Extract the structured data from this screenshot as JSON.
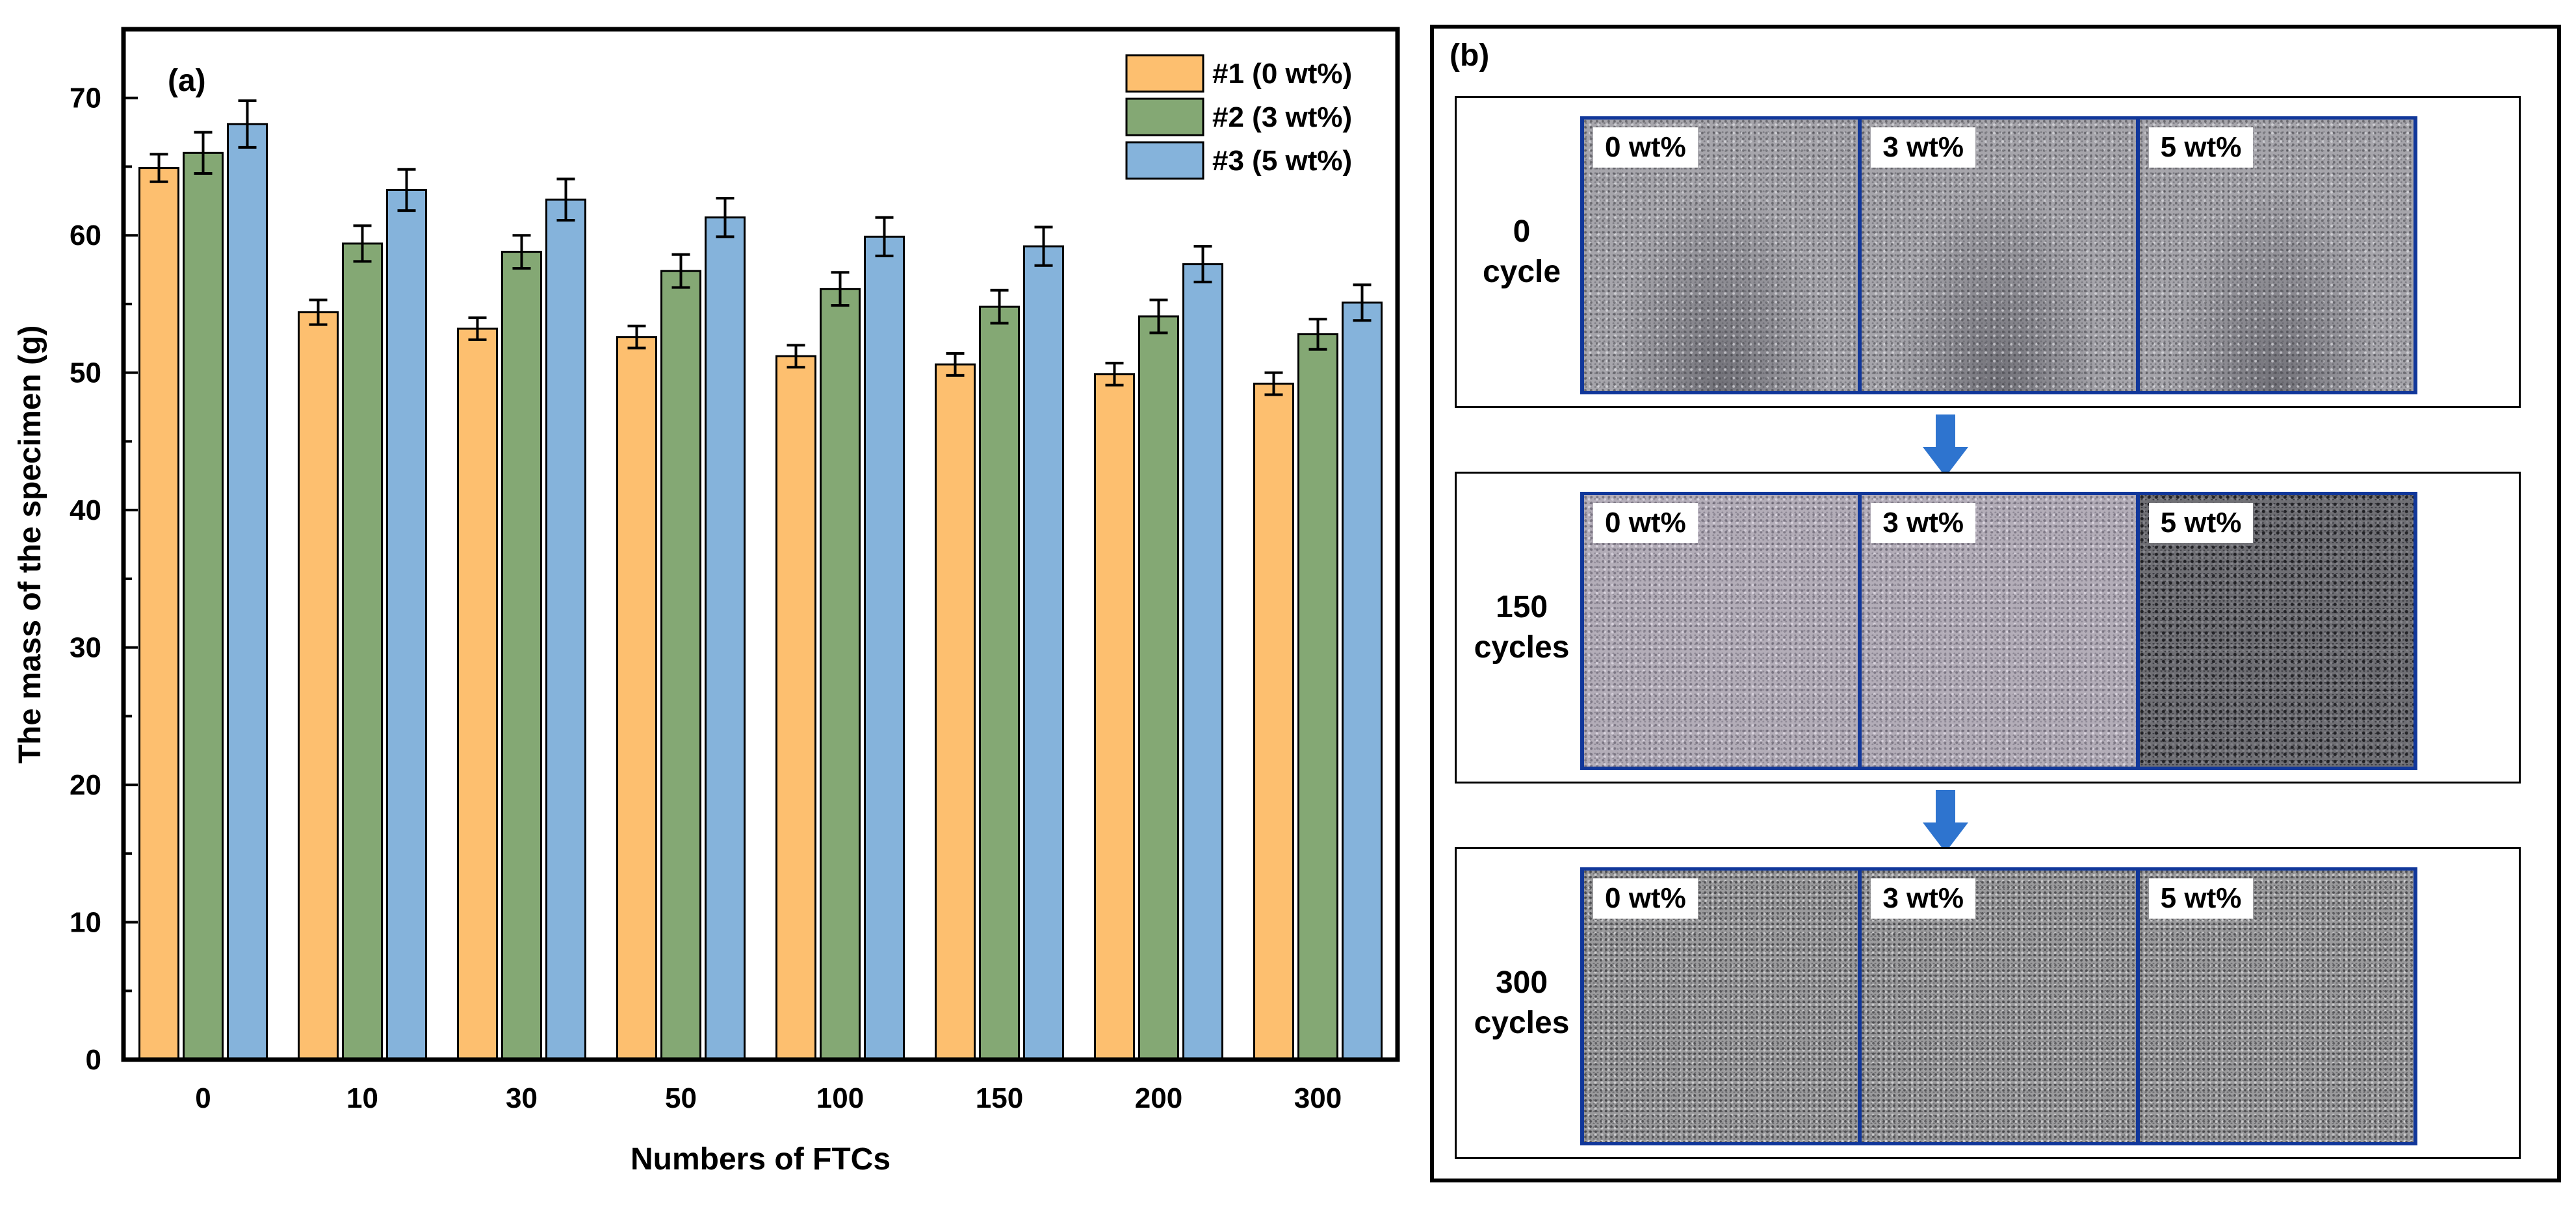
{
  "chart_data": {
    "type": "bar",
    "panel_label": "(a)",
    "categories": [
      "0",
      "10",
      "30",
      "50",
      "100",
      "150",
      "200",
      "300"
    ],
    "series": [
      {
        "name": "#1 (0 wt%)",
        "color": "#FDBF6F",
        "values": [
          64.9,
          54.4,
          53.2,
          52.6,
          51.2,
          50.6,
          49.9,
          49.2
        ],
        "errors": [
          1.0,
          0.9,
          0.8,
          0.8,
          0.8,
          0.8,
          0.8,
          0.8
        ]
      },
      {
        "name": "#2 (3 wt%)",
        "color": "#84A874",
        "values": [
          66.0,
          59.4,
          58.8,
          57.4,
          56.1,
          54.8,
          54.1,
          52.8
        ],
        "errors": [
          1.5,
          1.3,
          1.2,
          1.2,
          1.2,
          1.2,
          1.2,
          1.1
        ]
      },
      {
        "name": "#3 (5 wt%)",
        "color": "#85B3DB",
        "values": [
          68.1,
          63.3,
          62.6,
          61.3,
          59.9,
          59.2,
          57.9,
          55.1
        ],
        "errors": [
          1.7,
          1.5,
          1.5,
          1.4,
          1.4,
          1.4,
          1.3,
          1.3
        ]
      }
    ],
    "xlabel": "Numbers of FTCs",
    "ylabel": "The mass of the specimen (g)",
    "ylim": [
      0,
      75
    ],
    "yticks": [
      0,
      10,
      20,
      30,
      40,
      50,
      60,
      70
    ],
    "legend_position": "top-right",
    "grid": false
  },
  "panel_b": {
    "label": "(b)",
    "rows": [
      {
        "label_line1": "0",
        "label_line2": "cycle",
        "photos": [
          "0 wt%",
          "3 wt%",
          "5 wt%"
        ]
      },
      {
        "label_line1": "150",
        "label_line2": "cycles",
        "photos": [
          "0 wt%",
          "3 wt%",
          "5 wt%"
        ]
      },
      {
        "label_line1": "300",
        "label_line2": "cycles",
        "photos": [
          "0 wt%",
          "3 wt%",
          "5 wt%"
        ]
      }
    ],
    "arrow_color": "#2E74CF"
  }
}
